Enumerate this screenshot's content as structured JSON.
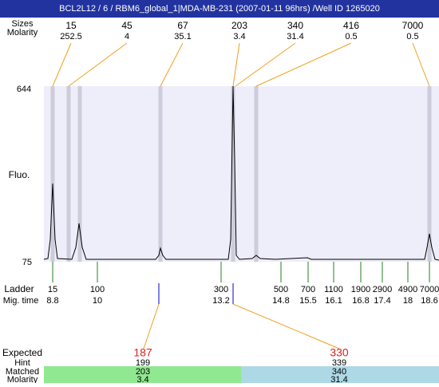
{
  "header": {
    "title": "BCL2L12 / 6 / RBM6_global_1|MDA-MB-231 (2007-01-11 96hrs) /Well ID 1265020"
  },
  "peaks": {
    "row_labels": [
      "Sizes",
      "Molarity"
    ],
    "sizes": [
      "15",
      "45",
      "67",
      "203",
      "340",
      "416",
      "7000"
    ],
    "molarity": [
      "252.5",
      "4",
      "35.1",
      "3.4",
      "31.4",
      "0.5",
      "0.5"
    ]
  },
  "y_axis": {
    "label": "Fluo.",
    "max": "644",
    "min": "75"
  },
  "ladder": {
    "row_labels": [
      "Ladder",
      "Mig. time"
    ],
    "sizes": [
      "15",
      "100",
      "300",
      "500",
      "700",
      "1100",
      "1900",
      "2900",
      "4900",
      "7000"
    ],
    "mig_times": [
      "8.8",
      "10",
      "13.2",
      "14.8",
      "15.5",
      "16.1",
      "16.8",
      "17.4",
      "18",
      "18.6"
    ]
  },
  "expected": {
    "row_labels": [
      "Expected",
      "Hint",
      "Matched",
      "Molarity"
    ],
    "expected": [
      "187",
      "330"
    ],
    "hint": [
      "199",
      "339"
    ],
    "matched": [
      "203",
      "340"
    ],
    "molarity": [
      "3.4",
      "31.4"
    ]
  }
}
